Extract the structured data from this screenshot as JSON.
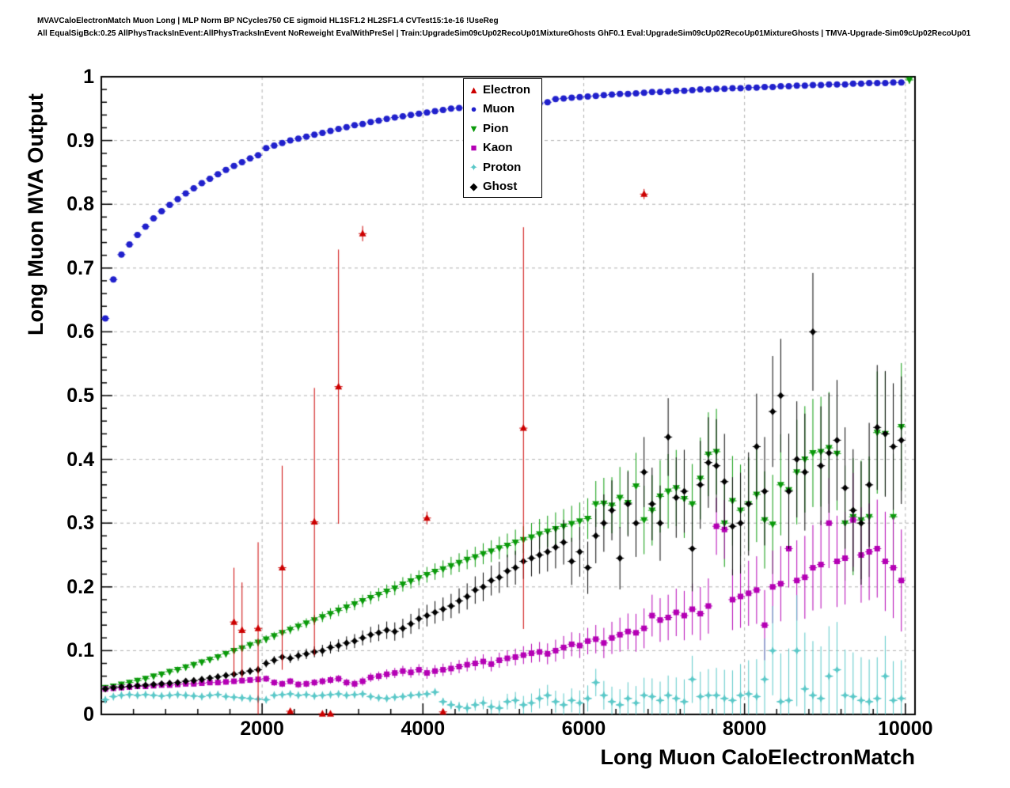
{
  "header": {
    "line1": "MVAVCaloElectronMatch Muon Long | MLP Norm BP NCycles750 CE sigmoid HL1SF1.2 HL2SF1.4 CVTest15:1e-16 !UseReg",
    "line2": "All EqualSigBck:0.25 AllPhysTracksInEvent:AllPhysTracksInEvent NoReweight EvalWithPreSel | Train:UpgradeSim09cUp02RecoUp01MixtureGhosts GhF0.1 Eval:UpgradeSim09cUp02RecoUp01MixtureGhosts | TMVA-Upgrade-Sim09cUp02RecoUp01"
  },
  "chart_data": {
    "type": "scatter",
    "title": "",
    "xlabel": "Long Muon CaloElectronMatch",
    "ylabel": "Long Muon MVA Output",
    "xlim": [
      0,
      10120
    ],
    "ylim": [
      0,
      1
    ],
    "x_ticks": [
      2000,
      4000,
      6000,
      8000,
      10000
    ],
    "x_tick_labels": [
      "2000",
      "4000",
      "6000",
      "8000",
      "10000"
    ],
    "y_ticks": [
      0,
      0.1,
      0.2,
      0.3,
      0.4,
      0.5,
      0.6,
      0.7,
      0.8,
      0.9,
      1
    ],
    "y_tick_labels": [
      "0",
      "0.1",
      "0.2",
      "0.3",
      "0.4",
      "0.5",
      "0.6",
      "0.7",
      "0.8",
      "0.9",
      "1"
    ],
    "x_minor_step": 400,
    "y_minor_step": 0.02,
    "grid": true,
    "grid_style": "dashed",
    "legend_position": "top-center",
    "legend_order": [
      "Electron",
      "Muon",
      "Pion",
      "Kaon",
      "Proton",
      "Ghost"
    ],
    "series": [
      {
        "name": "Muon",
        "marker": "circle",
        "color": "#2020cc",
        "x0": 50,
        "dx": 100,
        "err": 0.003,
        "y": [
          0.621,
          0.682,
          0.721,
          0.737,
          0.752,
          0.765,
          0.778,
          0.789,
          0.799,
          0.808,
          0.817,
          0.825,
          0.833,
          0.84,
          0.847,
          0.854,
          0.86,
          0.866,
          0.872,
          0.877,
          0.888,
          0.892,
          0.896,
          0.9,
          0.903,
          0.906,
          0.909,
          0.912,
          0.915,
          0.918,
          0.921,
          0.924,
          0.926,
          0.929,
          0.931,
          0.934,
          0.936,
          0.938,
          0.94,
          0.942,
          0.944,
          0.946,
          0.948,
          0.95,
          0.951,
          0.953,
          0.955,
          0.956,
          0.958,
          0.959,
          0.96,
          0.962,
          0.963,
          0.964,
          0.958,
          0.96,
          0.965,
          0.966,
          0.967,
          0.968,
          0.969,
          0.97,
          0.971,
          0.972,
          0.973,
          0.973,
          0.974,
          0.975,
          0.976,
          0.976,
          0.977,
          0.978,
          0.978,
          0.979,
          0.98,
          0.98,
          0.981,
          0.981,
          0.982,
          0.982,
          0.983,
          0.983,
          0.984,
          0.984,
          0.985,
          0.985,
          0.986,
          0.986,
          0.987,
          0.987,
          0.988,
          0.988,
          0.988,
          0.989,
          0.989,
          0.99,
          0.99,
          0.99,
          0.991,
          0.991
        ]
      },
      {
        "name": "Pion",
        "marker": "triangle-down",
        "color": "#0a9a0a",
        "x0": 50,
        "dx": 100,
        "err": [
          [
            50,
            0.004
          ],
          [
            2000,
            0.006
          ],
          [
            4000,
            0.012
          ],
          [
            5000,
            0.018
          ],
          [
            6000,
            0.03
          ],
          [
            6500,
            0.05
          ],
          [
            7500,
            0.065
          ],
          [
            8500,
            0.08
          ],
          [
            9950,
            0.1
          ]
        ],
        "y": [
          0.042,
          0.044,
          0.047,
          0.05,
          0.053,
          0.056,
          0.06,
          0.063,
          0.067,
          0.07,
          0.074,
          0.078,
          0.082,
          0.086,
          0.09,
          0.095,
          0.1,
          0.104,
          0.109,
          0.113,
          0.118,
          0.123,
          0.128,
          0.133,
          0.138,
          0.143,
          0.148,
          0.153,
          0.158,
          0.163,
          0.168,
          0.173,
          0.178,
          0.183,
          0.188,
          0.193,
          0.198,
          0.204,
          0.209,
          0.214,
          0.219,
          0.224,
          0.228,
          0.233,
          0.238,
          0.243,
          0.247,
          0.252,
          0.256,
          0.261,
          0.265,
          0.27,
          0.274,
          0.278,
          0.283,
          0.287,
          0.291,
          0.295,
          0.299,
          0.303,
          0.307,
          0.33,
          0.331,
          0.328,
          0.34,
          0.332,
          0.358,
          0.305,
          0.32,
          0.342,
          0.35,
          0.355,
          0.338,
          0.33,
          0.37,
          0.408,
          0.412,
          0.3,
          0.335,
          0.32,
          0.33,
          0.345,
          0.305,
          0.298,
          0.36,
          0.352,
          0.38,
          0.4,
          0.41,
          0.412,
          0.418,
          0.409,
          0.3,
          0.31,
          0.305,
          0.31,
          0.442,
          0.44,
          0.31,
          0.451
        ],
        "extra_points": [
          [
            10050,
            0.995,
            0.006
          ]
        ]
      },
      {
        "name": "Kaon",
        "marker": "square",
        "color": "#b400b4",
        "x0": 50,
        "dx": 100,
        "err": [
          [
            50,
            0.003
          ],
          [
            3000,
            0.006
          ],
          [
            5000,
            0.012
          ],
          [
            6000,
            0.02
          ],
          [
            7000,
            0.035
          ],
          [
            8000,
            0.05
          ],
          [
            9000,
            0.07
          ],
          [
            9950,
            0.08
          ]
        ],
        "y": [
          0.04,
          0.041,
          0.042,
          0.043,
          0.044,
          0.044,
          0.045,
          0.046,
          0.046,
          0.047,
          0.048,
          0.048,
          0.049,
          0.05,
          0.05,
          0.051,
          0.052,
          0.053,
          0.054,
          0.055,
          0.056,
          0.05,
          0.048,
          0.052,
          0.047,
          0.048,
          0.05,
          0.052,
          0.054,
          0.056,
          0.05,
          0.048,
          0.052,
          0.058,
          0.06,
          0.063,
          0.065,
          0.068,
          0.066,
          0.07,
          0.065,
          0.068,
          0.07,
          0.072,
          0.075,
          0.078,
          0.08,
          0.083,
          0.079,
          0.085,
          0.088,
          0.09,
          0.093,
          0.096,
          0.098,
          0.095,
          0.1,
          0.105,
          0.11,
          0.108,
          0.115,
          0.118,
          0.112,
          0.12,
          0.125,
          0.13,
          0.128,
          0.135,
          0.155,
          0.148,
          0.152,
          0.16,
          0.155,
          0.165,
          0.158,
          0.17,
          0.295,
          0.29,
          0.18,
          0.185,
          0.19,
          0.195,
          0.14,
          0.2,
          0.205,
          0.26,
          0.21,
          0.215,
          0.23,
          0.235,
          0.3,
          0.24,
          0.245,
          0.305,
          0.25,
          0.255,
          0.26,
          0.24,
          0.23,
          0.21
        ]
      },
      {
        "name": "Proton",
        "marker": "star4",
        "color": "#5ac8c8",
        "x0": 50,
        "dx": 100,
        "err": [
          [
            50,
            0.002
          ],
          [
            4000,
            0.004
          ],
          [
            5000,
            0.012
          ],
          [
            6000,
            0.02
          ],
          [
            7000,
            0.03
          ],
          [
            8000,
            0.05
          ],
          [
            8700,
            0.09
          ],
          [
            9300,
            0.07
          ],
          [
            9950,
            0.06
          ]
        ],
        "y": [
          0.023,
          0.028,
          0.03,
          0.031,
          0.03,
          0.031,
          0.03,
          0.029,
          0.03,
          0.031,
          0.03,
          0.029,
          0.028,
          0.03,
          0.031,
          0.028,
          0.027,
          0.026,
          0.025,
          0.024,
          0.023,
          0.03,
          0.031,
          0.032,
          0.03,
          0.031,
          0.029,
          0.03,
          0.031,
          0.032,
          0.03,
          0.031,
          0.032,
          0.028,
          0.026,
          0.025,
          0.027,
          0.028,
          0.03,
          0.031,
          0.032,
          0.035,
          0.02,
          0.015,
          0.012,
          0.01,
          0.015,
          0.018,
          0.012,
          0.01,
          0.02,
          0.022,
          0.015,
          0.018,
          0.025,
          0.03,
          0.02,
          0.015,
          0.022,
          0.018,
          0.025,
          0.05,
          0.03,
          0.02,
          0.015,
          0.025,
          0.018,
          0.03,
          0.028,
          0.022,
          0.03,
          0.025,
          0.02,
          0.055,
          0.028,
          0.03,
          0.03,
          0.025,
          0.022,
          0.03,
          0.032,
          0.028,
          0.055,
          0.1,
          0.02,
          0.022,
          0.1,
          0.04,
          0.03,
          0.025,
          0.06,
          0.07,
          0.03,
          0.028,
          0.022,
          0.02,
          0.025,
          0.06,
          0.022,
          0.025
        ]
      },
      {
        "name": "Ghost",
        "marker": "diamond",
        "color": "#000000",
        "x0": 50,
        "dx": 100,
        "err": [
          [
            50,
            0.003
          ],
          [
            2000,
            0.006
          ],
          [
            3000,
            0.01
          ],
          [
            4500,
            0.02
          ],
          [
            5500,
            0.03
          ],
          [
            6500,
            0.05
          ],
          [
            7500,
            0.07
          ],
          [
            8500,
            0.09
          ],
          [
            9950,
            0.1
          ]
        ],
        "y": [
          0.04,
          0.042,
          0.043,
          0.044,
          0.045,
          0.046,
          0.047,
          0.048,
          0.049,
          0.05,
          0.052,
          0.053,
          0.055,
          0.057,
          0.059,
          0.061,
          0.063,
          0.065,
          0.068,
          0.07,
          0.08,
          0.085,
          0.09,
          0.088,
          0.092,
          0.095,
          0.098,
          0.1,
          0.105,
          0.108,
          0.112,
          0.115,
          0.12,
          0.125,
          0.128,
          0.132,
          0.13,
          0.135,
          0.142,
          0.15,
          0.155,
          0.16,
          0.165,
          0.17,
          0.178,
          0.185,
          0.195,
          0.2,
          0.21,
          0.215,
          0.225,
          0.23,
          0.24,
          0.245,
          0.25,
          0.255,
          0.262,
          0.27,
          0.24,
          0.255,
          0.23,
          0.28,
          0.3,
          0.32,
          0.245,
          0.33,
          0.3,
          0.38,
          0.33,
          0.3,
          0.435,
          0.34,
          0.35,
          0.26,
          0.36,
          0.395,
          0.39,
          0.365,
          0.295,
          0.3,
          0.33,
          0.42,
          0.35,
          0.475,
          0.5,
          0.35,
          0.4,
          0.38,
          0.6,
          0.39,
          0.41,
          0.43,
          0.355,
          0.32,
          0.3,
          0.36,
          0.45,
          0.44,
          0.42,
          0.43
        ]
      },
      {
        "name": "Electron",
        "marker": "triangle-up",
        "color": "#cc0000",
        "points": [
          [
            1650,
            0.145,
            0.085
          ],
          [
            1750,
            0.132,
            0.075
          ],
          [
            1950,
            0.135,
            0.135
          ],
          [
            2250,
            0.23,
            0.16
          ],
          [
            2350,
            0.005,
            0.004
          ],
          [
            2650,
            0.302,
            0.21
          ],
          [
            2750,
            0.001,
            0.003
          ],
          [
            2850,
            0.001,
            0.003
          ],
          [
            2950,
            0.514,
            0.215
          ],
          [
            3250,
            0.754,
            0.012
          ],
          [
            4050,
            0.308,
            0.01
          ],
          [
            4250,
            0.004,
            0.004
          ],
          [
            5250,
            0.449,
            0.315
          ],
          [
            6750,
            0.816,
            0.008
          ]
        ]
      }
    ]
  }
}
